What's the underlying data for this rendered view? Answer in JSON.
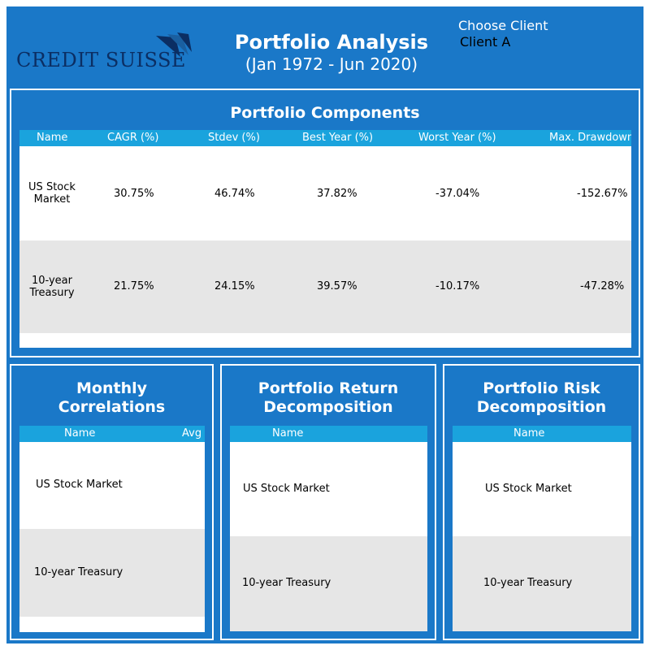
{
  "header": {
    "logo_text": "CREDIT SUISSE",
    "title": "Portfolio Analysis",
    "subtitle": "(Jan 1972 - Jun 2020)",
    "client_label": "Choose Client",
    "client_value": "Client A"
  },
  "components": {
    "title": "Portfolio Components",
    "columns": [
      "Name",
      "CAGR (%)",
      "Stdev (%)",
      "Best Year (%)",
      "Worst Year (%)",
      "Max. Drawdown"
    ],
    "rows": [
      {
        "name_line1": "US Stock",
        "name_line2": "Market",
        "cagr": "30.75%",
        "stdev": "46.74%",
        "best": "37.82%",
        "worst": "-37.04%",
        "maxdd": "-152.67%"
      },
      {
        "name_line1": "10-year",
        "name_line2": "Treasury",
        "cagr": "21.75%",
        "stdev": "24.15%",
        "best": "39.57%",
        "worst": "-10.17%",
        "maxdd": "-47.28%"
      }
    ]
  },
  "correlations": {
    "title_line1": "Monthly",
    "title_line2": "Correlations",
    "columns": [
      "Name",
      "Avg"
    ],
    "rows": [
      "US Stock Market",
      "10-year Treasury"
    ]
  },
  "return_decomp": {
    "title_line1": "Portfolio Return",
    "title_line2": "Decomposition",
    "columns": [
      "Name"
    ],
    "rows": [
      "US Stock Market",
      "10-year Treasury"
    ]
  },
  "risk_decomp": {
    "title_line1": "Portfolio Risk",
    "title_line2": "Decomposition",
    "columns": [
      "Name"
    ],
    "rows": [
      "US Stock Market",
      "10-year Treasury"
    ]
  },
  "colors": {
    "frame_blue": "#1a78c8",
    "header_cyan": "#1aa3dd",
    "logo_navy": "#0b2e63",
    "row_alt_gray": "#e6e6e6"
  }
}
